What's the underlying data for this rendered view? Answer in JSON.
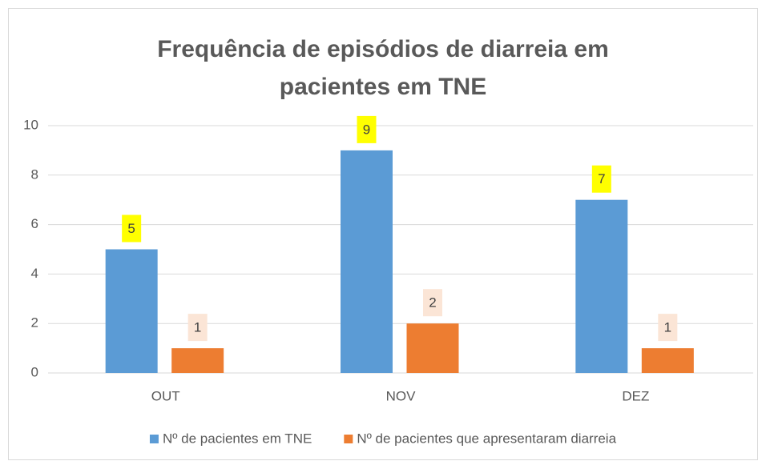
{
  "chart_data": {
    "type": "bar",
    "title": "Frequência de episódios de diarreia em\npacientes em TNE",
    "categories": [
      "OUT",
      "NOV",
      "DEZ"
    ],
    "series": [
      {
        "name": "Nº de pacientes em TNE",
        "color": "#5b9bd5",
        "label_background": "#ffff00",
        "values": [
          5,
          9,
          7
        ]
      },
      {
        "name": "Nº de pacientes que apresentaram diarreia",
        "color": "#ed7d31",
        "label_background": "#fbe5d6",
        "values": [
          1,
          2,
          1
        ]
      }
    ],
    "ylim": [
      0,
      10
    ],
    "yticks": [
      0,
      2,
      4,
      6,
      8,
      10
    ],
    "grid": true,
    "legend": "bottom"
  }
}
